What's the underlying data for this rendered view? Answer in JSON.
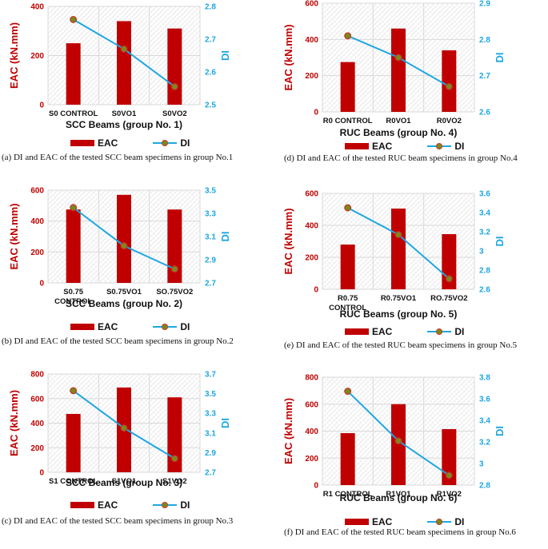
{
  "colors": {
    "bar": "#c00000",
    "line": "#1ea7e1",
    "marker_fill": "#7a8a1a",
    "marker_edge": "#c0392b",
    "grid": "#d9d9d9",
    "yleft": "#c00000",
    "yright": "#1ea7e1"
  },
  "chart_data": [
    {
      "type": "bar",
      "categories": [
        "S0 CONTROL",
        "S0VO1",
        "S0VO2"
      ],
      "series": [
        {
          "name": "EAC",
          "type": "bar",
          "axis": "left",
          "values": [
            250,
            340,
            310
          ]
        },
        {
          "name": "DI",
          "type": "line",
          "axis": "right",
          "values": [
            2.76,
            2.67,
            2.555
          ]
        }
      ],
      "xlabel": "SCC Beams (group No. 1)",
      "ylabel": "EAC  (kN.mm)",
      "y2label": "DI",
      "ylim": [
        0,
        400
      ],
      "yticks": [
        "0",
        "200",
        "400"
      ],
      "y2lim": [
        2.5,
        2.8
      ],
      "y2ticks": [
        "2.5",
        "2.6",
        "2.7",
        "2.8"
      ],
      "legend": "bottom",
      "caption": "(a) DI and EAC of the tested SCC beam specimens in group No.1"
    },
    {
      "type": "bar",
      "categories": [
        "S0.75 CONTROL",
        "S0.75VO1",
        "SO.75VO2"
      ],
      "series": [
        {
          "name": "EAC",
          "type": "bar",
          "axis": "left",
          "values": [
            475,
            570,
            475
          ]
        },
        {
          "name": "DI",
          "type": "line",
          "axis": "right",
          "values": [
            3.35,
            3.02,
            2.82
          ]
        }
      ],
      "xlabel": "SCC Beams (group No. 2)",
      "ylabel": "EAC  (kN.mm)",
      "y2label": "DI",
      "ylim": [
        0,
        600
      ],
      "yticks": [
        "0",
        "200",
        "400",
        "600"
      ],
      "y2lim": [
        2.7,
        3.5
      ],
      "y2ticks": [
        "2.7",
        "2.9",
        "3.1",
        "3.3",
        "3.5"
      ],
      "legend": "bottom",
      "caption": "(b) DI and EAC of the tested SCC beam specimens in group No.2"
    },
    {
      "type": "bar",
      "categories": [
        "S1 CONTROL",
        "S1VO1",
        "S1VO2"
      ],
      "series": [
        {
          "name": "EAC",
          "type": "bar",
          "axis": "left",
          "values": [
            475,
            690,
            610
          ]
        },
        {
          "name": "DI",
          "type": "line",
          "axis": "right",
          "values": [
            3.53,
            3.15,
            2.84
          ]
        }
      ],
      "xlabel": "SCC Beams (group No. 3)",
      "ylabel": "EAC  (kN.mm)",
      "y2label": "DI",
      "ylim": [
        0,
        800
      ],
      "yticks": [
        "0",
        "200",
        "400",
        "600",
        "800"
      ],
      "y2lim": [
        2.7,
        3.7
      ],
      "y2ticks": [
        "2.7",
        "2.9",
        "3.1",
        "3.3",
        "3.5",
        "3.7"
      ],
      "legend": "bottom",
      "caption": "(c) DI and EAC of the tested SCC beam specimens in group No.3"
    },
    {
      "type": "bar",
      "categories": [
        "R0 CONTROL",
        "R0VO1",
        "R0VO2"
      ],
      "series": [
        {
          "name": "EAC",
          "type": "bar",
          "axis": "left",
          "values": [
            275,
            460,
            340
          ]
        },
        {
          "name": "DI",
          "type": "line",
          "axis": "right",
          "values": [
            2.81,
            2.75,
            2.67
          ]
        }
      ],
      "xlabel": "RUC Beams (group No. 4)",
      "ylabel": "EAC  (kN.mm)",
      "y2label": "DI",
      "ylim": [
        0,
        600
      ],
      "yticks": [
        "0",
        "200",
        "400",
        "600"
      ],
      "y2lim": [
        2.6,
        2.9
      ],
      "y2ticks": [
        "2.6",
        "2.7",
        "2.8",
        "2.9"
      ],
      "legend": "bottom",
      "caption": "(d) DI and EAC of the tested RUC beam specimens in group No.4"
    },
    {
      "type": "bar",
      "categories": [
        "R0.75 CONTROL",
        "R0.75VO1",
        "RO.75VO2"
      ],
      "series": [
        {
          "name": "EAC",
          "type": "bar",
          "axis": "left",
          "values": [
            280,
            505,
            345
          ]
        },
        {
          "name": "DI",
          "type": "line",
          "axis": "right",
          "values": [
            3.45,
            3.17,
            2.71
          ]
        }
      ],
      "xlabel": "RUC Beams (group No. 5)",
      "ylabel": "EAC  (kN.mm)",
      "y2label": "DI",
      "ylim": [
        0,
        600
      ],
      "yticks": [
        "0",
        "200",
        "400",
        "600"
      ],
      "y2lim": [
        2.6,
        3.6
      ],
      "y2ticks": [
        "2.6",
        "2.8",
        "3",
        "3.2",
        "3.4",
        "3.6"
      ],
      "legend": "bottom",
      "caption": "(e) DI and EAC of the tested RUC beam specimens in group No.5"
    },
    {
      "type": "bar",
      "categories": [
        "R1 CONTROL",
        "R1VO1",
        "R1VO2"
      ],
      "series": [
        {
          "name": "EAC",
          "type": "bar",
          "axis": "left",
          "values": [
            385,
            600,
            415
          ]
        },
        {
          "name": "DI",
          "type": "line",
          "axis": "right",
          "values": [
            3.67,
            3.21,
            2.89
          ]
        }
      ],
      "xlabel": "RUC Beams (group No. 6)",
      "ylabel": "EAC  (kN.mm)",
      "y2label": "DI",
      "ylim": [
        0,
        800
      ],
      "yticks": [
        "0",
        "200",
        "400",
        "600",
        "800"
      ],
      "y2lim": [
        2.8,
        3.8
      ],
      "y2ticks": [
        "2.8",
        "3",
        "3.2",
        "3.4",
        "3.6",
        "3.8"
      ],
      "legend": "bottom",
      "caption": "(f) DI and EAC of the tested RUC beam specimens in group No.6"
    }
  ]
}
